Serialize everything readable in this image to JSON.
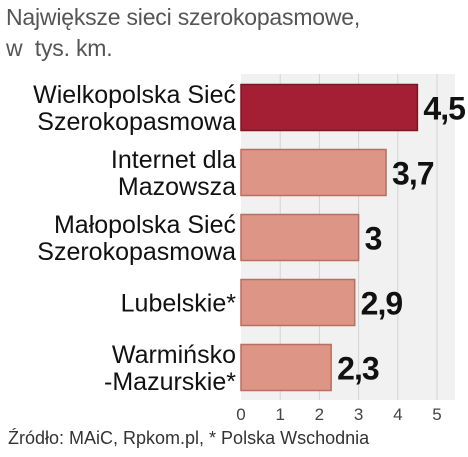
{
  "title_lines": [
    "Największe sieci szerokopasmowe,",
    "w  tys. km."
  ],
  "source": "Źródło: MAiC, Rpkom.pl, * Polska Wschodnia",
  "colors": {
    "highlight": "#a41e34",
    "bar": "#dd9585",
    "bar_stroke": "#b86e60",
    "plot_bg": "#f1f1f1",
    "grid": "#d4d4d4",
    "label": "#111111",
    "tick": "#444444"
  },
  "chart_data": {
    "type": "bar",
    "orientation": "horizontal",
    "title": "Największe sieci szerokopasmowe, w  tys. km.",
    "categories": [
      [
        "Wielkopolska Sieć",
        "Szerokopasmowa"
      ],
      [
        "Internet dla",
        "Mazowsza"
      ],
      [
        "Małopolska Sieć",
        "Szerokopasmowa"
      ],
      [
        "Lubelskie*"
      ],
      [
        "Warmińsko",
        "-Mazurskie*"
      ]
    ],
    "values": [
      4.5,
      3.7,
      3,
      2.9,
      2.3
    ],
    "value_labels": [
      "4,5",
      "3,7",
      "3",
      "2,9",
      "2,3"
    ],
    "highlighted_index": 0,
    "xlim": [
      0,
      5
    ],
    "xticks": [
      "0",
      "1",
      "2",
      "3",
      "4",
      "5"
    ],
    "grid": true
  }
}
